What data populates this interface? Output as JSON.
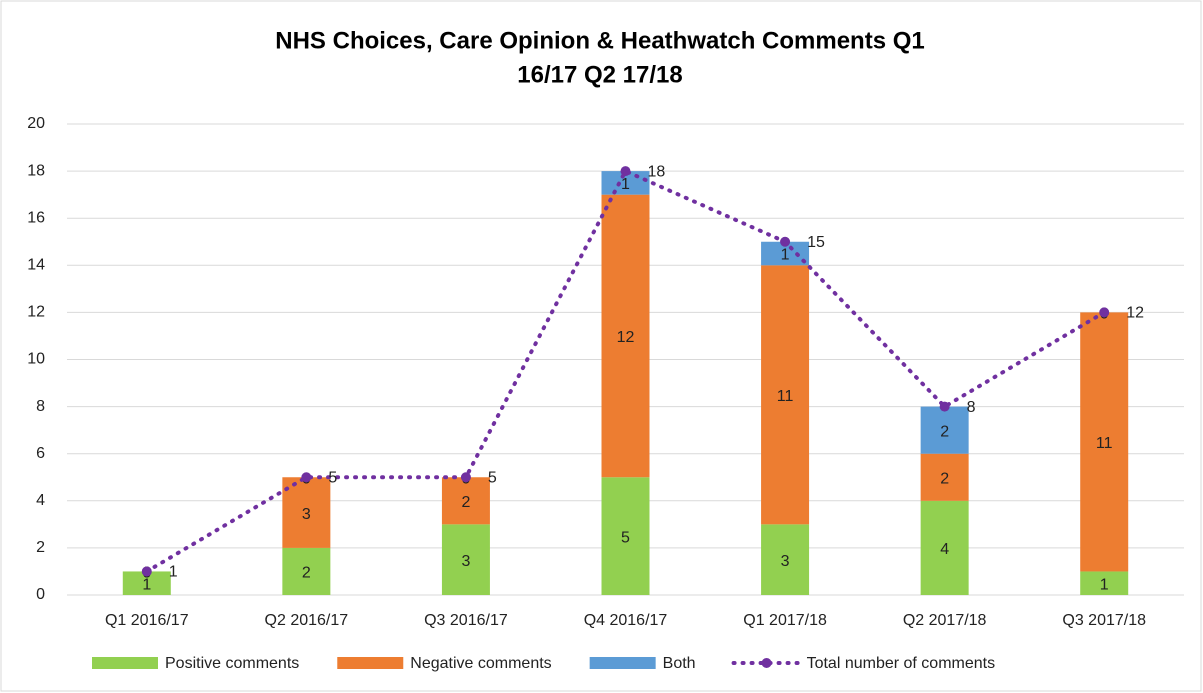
{
  "chart_data": {
    "type": "stacked-bar-line",
    "title": [
      "NHS Choices, Care Opinion & Heathwatch Comments Q1",
      "16/17  Q2 17/18"
    ],
    "categories": [
      "Q1 2016/17",
      "Q2 2016/17",
      "Q3 2016/17",
      "Q4 2016/17",
      "Q1 2017/18",
      "Q2 2017/18",
      "Q3 2017/18"
    ],
    "series": [
      {
        "name": "Positive comments",
        "color": "#92d050",
        "values": [
          1,
          2,
          3,
          5,
          3,
          4,
          1
        ]
      },
      {
        "name": "Negative comments",
        "color": "#ed7d31",
        "values": [
          0,
          3,
          2,
          12,
          11,
          2,
          11
        ]
      },
      {
        "name": "Both",
        "color": "#5b9bd5",
        "values": [
          0,
          0,
          0,
          1,
          1,
          2,
          0
        ]
      },
      {
        "name": "Total number of comments",
        "color": "#7030a0",
        "type": "line",
        "values": [
          1,
          5,
          5,
          18,
          15,
          8,
          12
        ]
      }
    ],
    "ylim": [
      0,
      20
    ],
    "yticks": [
      0,
      2,
      4,
      6,
      8,
      10,
      12,
      14,
      16,
      18,
      20
    ],
    "grid": true,
    "legend": "bottom"
  }
}
